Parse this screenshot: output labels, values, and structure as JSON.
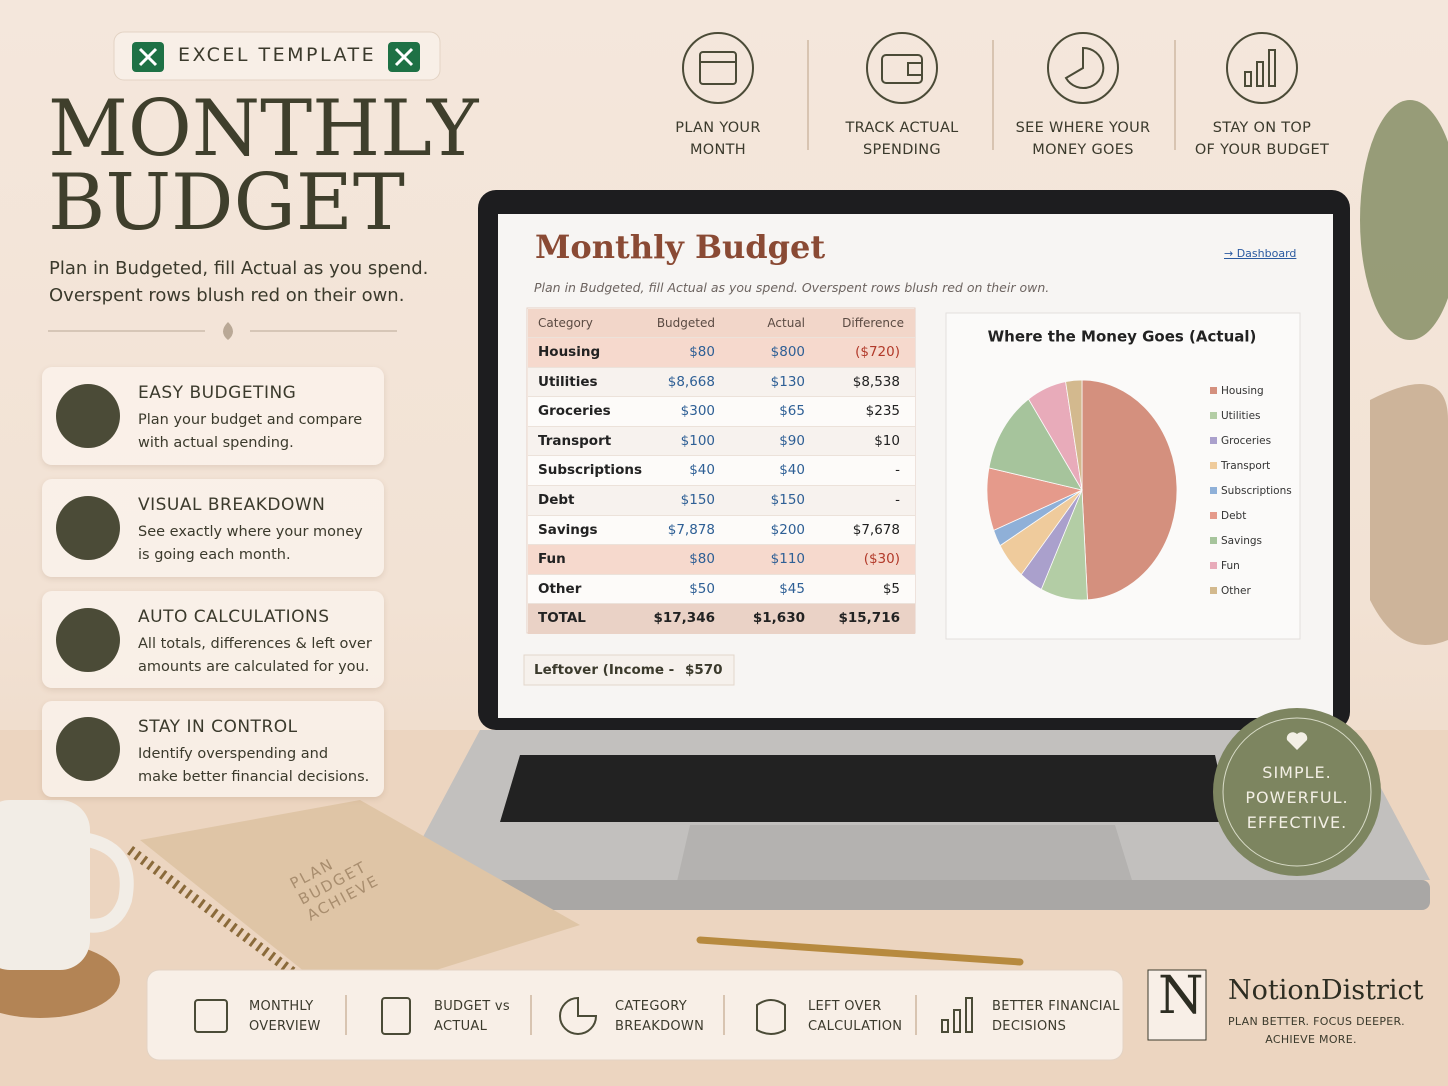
{
  "header": {
    "badge": "EXCEL TEMPLATE",
    "title_lines": [
      "MONTHLY",
      "BUDGET"
    ],
    "subtitle_lines": [
      "Plan in Budgeted, fill Actual as you spend.",
      "Overspent rows blush red on their own."
    ]
  },
  "features": [
    {
      "title": "EASY BUDGETING",
      "lines": [
        "Plan your budget and compare",
        "with actual spending."
      ]
    },
    {
      "title": "VISUAL BREAKDOWN",
      "lines": [
        "See exactly where your money",
        "is going each month."
      ]
    },
    {
      "title": "AUTO CALCULATIONS",
      "lines": [
        "All totals, differences & left over",
        "amounts are calculated for you."
      ]
    },
    {
      "title": "STAY IN CONTROL",
      "lines": [
        "Identify overspending and",
        "make better financial decisions."
      ]
    }
  ],
  "top_icons": [
    {
      "lines": [
        "PLAN YOUR",
        "MONTH"
      ]
    },
    {
      "lines": [
        "TRACK ACTUAL",
        "SPENDING"
      ]
    },
    {
      "lines": [
        "SEE WHERE YOUR",
        "MONEY GOES"
      ]
    },
    {
      "lines": [
        "STAY ON TOP",
        "OF YOUR BUDGET"
      ]
    }
  ],
  "sheet": {
    "title": "Monthly Budget",
    "link": "→ Dashboard",
    "note": "Plan in Budgeted, fill Actual as you spend. Overspent rows blush red on their own.",
    "headers": [
      "Category",
      "Budgeted",
      "Actual",
      "Difference"
    ],
    "rows": [
      [
        "Housing",
        "$80",
        "$800",
        "($720)"
      ],
      [
        "Utilities",
        "$8,668",
        "$130",
        "$8,538"
      ],
      [
        "Groceries",
        "$300",
        "$65",
        "$235"
      ],
      [
        "Transport",
        "$100",
        "$90",
        "$10"
      ],
      [
        "Subscriptions",
        "$40",
        "$40",
        "-"
      ],
      [
        "Debt",
        "$150",
        "$150",
        "-"
      ],
      [
        "Savings",
        "$7,878",
        "$200",
        "$7,678"
      ],
      [
        "Fun",
        "$80",
        "$110",
        "($30)"
      ],
      [
        "Other",
        "$50",
        "$45",
        "$5"
      ]
    ],
    "total": [
      "TOTAL",
      "$17,346",
      "$1,630",
      "$15,716"
    ],
    "leftover_label": "Leftover (Income -",
    "leftover_value": "$570"
  },
  "chart_data": {
    "type": "pie",
    "title": "Where the Money Goes (Actual)",
    "categories": [
      "Housing",
      "Utilities",
      "Groceries",
      "Transport",
      "Subscriptions",
      "Debt",
      "Savings",
      "Fun",
      "Other"
    ],
    "values": [
      800,
      130,
      65,
      90,
      40,
      150,
      200,
      110,
      45
    ],
    "colors": [
      "#d4907e",
      "#b3cda5",
      "#aaa0cc",
      "#efcb9c",
      "#8fb0d8",
      "#e59a8b",
      "#a6c49c",
      "#e8abba",
      "#d3b98e"
    ]
  },
  "badge": {
    "lines": [
      "SIMPLE.",
      "POWERFUL.",
      "EFFECTIVE."
    ]
  },
  "notebook": {
    "lines": [
      "PLAN",
      "BUDGET",
      "ACHIEVE"
    ]
  },
  "bottom_bar": [
    {
      "lines": [
        "MONTHLY",
        "OVERVIEW"
      ]
    },
    {
      "lines": [
        "BUDGET vs",
        "ACTUAL"
      ]
    },
    {
      "lines": [
        "CATEGORY",
        "BREAKDOWN"
      ]
    },
    {
      "lines": [
        "LEFT OVER",
        "CALCULATION"
      ]
    },
    {
      "lines": [
        "BETTER FINANCIAL",
        "DECISIONS"
      ]
    }
  ],
  "brand": {
    "logo": "N",
    "name": "NotionDistrict",
    "tagline_lines": [
      "PLAN BETTER. FOCUS DEEPER.",
      "ACHIEVE MORE."
    ]
  }
}
